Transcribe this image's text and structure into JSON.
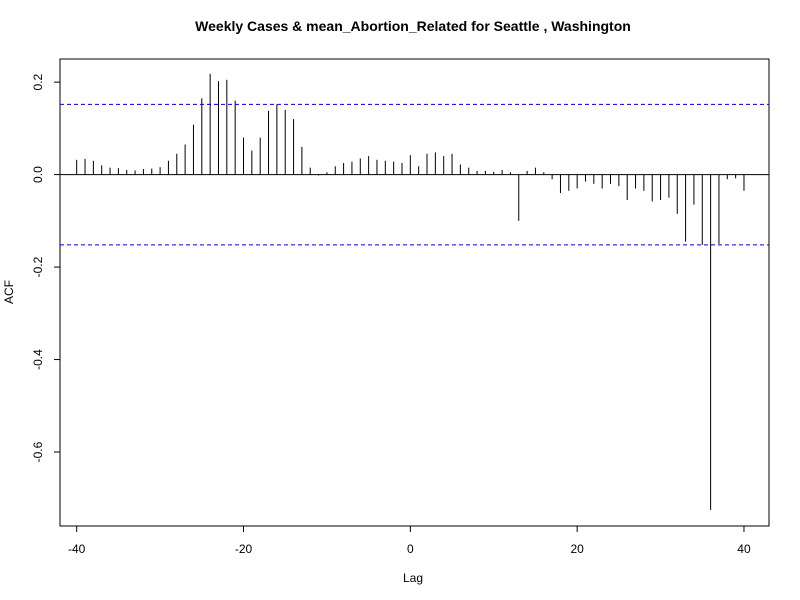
{
  "chart_data": {
    "type": "bar",
    "title": "Weekly Cases & mean_Abortion_Related for Seattle , Washington",
    "xlabel": "Lag",
    "ylabel": "ACF",
    "xlim": [
      -42,
      43
    ],
    "ylim": [
      -0.76,
      0.25
    ],
    "xticks": [
      -40,
      -20,
      0,
      20,
      40
    ],
    "xtick_labels": [
      "-40",
      "-20",
      "0",
      "20",
      "40"
    ],
    "yticks": [
      -0.6,
      -0.4,
      -0.2,
      0.0,
      0.2
    ],
    "ytick_labels": [
      "-0.6",
      "-0.4",
      "-0.2",
      "0.0",
      "0.2"
    ],
    "confidence_bounds": [
      0.152,
      -0.152
    ],
    "colors": {
      "bars": "#000000",
      "confidence": "#0000cc",
      "zero_line": "#000000"
    },
    "grid": false,
    "lags": [
      -40,
      -39,
      -38,
      -37,
      -36,
      -35,
      -34,
      -33,
      -32,
      -31,
      -30,
      -29,
      -28,
      -27,
      -26,
      -25,
      -24,
      -23,
      -22,
      -21,
      -20,
      -19,
      -18,
      -17,
      -16,
      -15,
      -14,
      -13,
      -12,
      -11,
      -10,
      -9,
      -8,
      -7,
      -6,
      -5,
      -4,
      -3,
      -2,
      -1,
      0,
      1,
      2,
      3,
      4,
      5,
      6,
      7,
      8,
      9,
      10,
      11,
      12,
      13,
      14,
      15,
      16,
      17,
      18,
      19,
      20,
      21,
      22,
      23,
      24,
      25,
      26,
      27,
      28,
      29,
      30,
      31,
      32,
      33,
      34,
      35,
      36,
      37,
      38,
      39,
      40
    ],
    "values": [
      0.032,
      0.034,
      0.03,
      0.02,
      0.015,
      0.014,
      0.01,
      0.009,
      0.012,
      0.013,
      0.016,
      0.03,
      0.045,
      0.065,
      0.108,
      0.165,
      0.218,
      0.202,
      0.205,
      0.16,
      0.08,
      0.052,
      0.08,
      0.138,
      0.152,
      0.14,
      0.12,
      0.06,
      0.015,
      -0.002,
      0.005,
      0.018,
      0.025,
      0.028,
      0.035,
      0.04,
      0.032,
      0.03,
      0.028,
      0.025,
      0.042,
      0.018,
      0.045,
      0.048,
      0.04,
      0.045,
      0.022,
      0.015,
      0.008,
      0.008,
      0.006,
      0.01,
      0.005,
      -0.1,
      0.008,
      0.015,
      0.005,
      -0.01,
      -0.04,
      -0.035,
      -0.03,
      -0.015,
      -0.02,
      -0.03,
      -0.02,
      -0.025,
      -0.055,
      -0.03,
      -0.035,
      -0.058,
      -0.055,
      -0.05,
      -0.085,
      -0.145,
      -0.065,
      -0.152,
      -0.725,
      -0.15,
      -0.01,
      -0.008,
      -0.035
    ]
  }
}
